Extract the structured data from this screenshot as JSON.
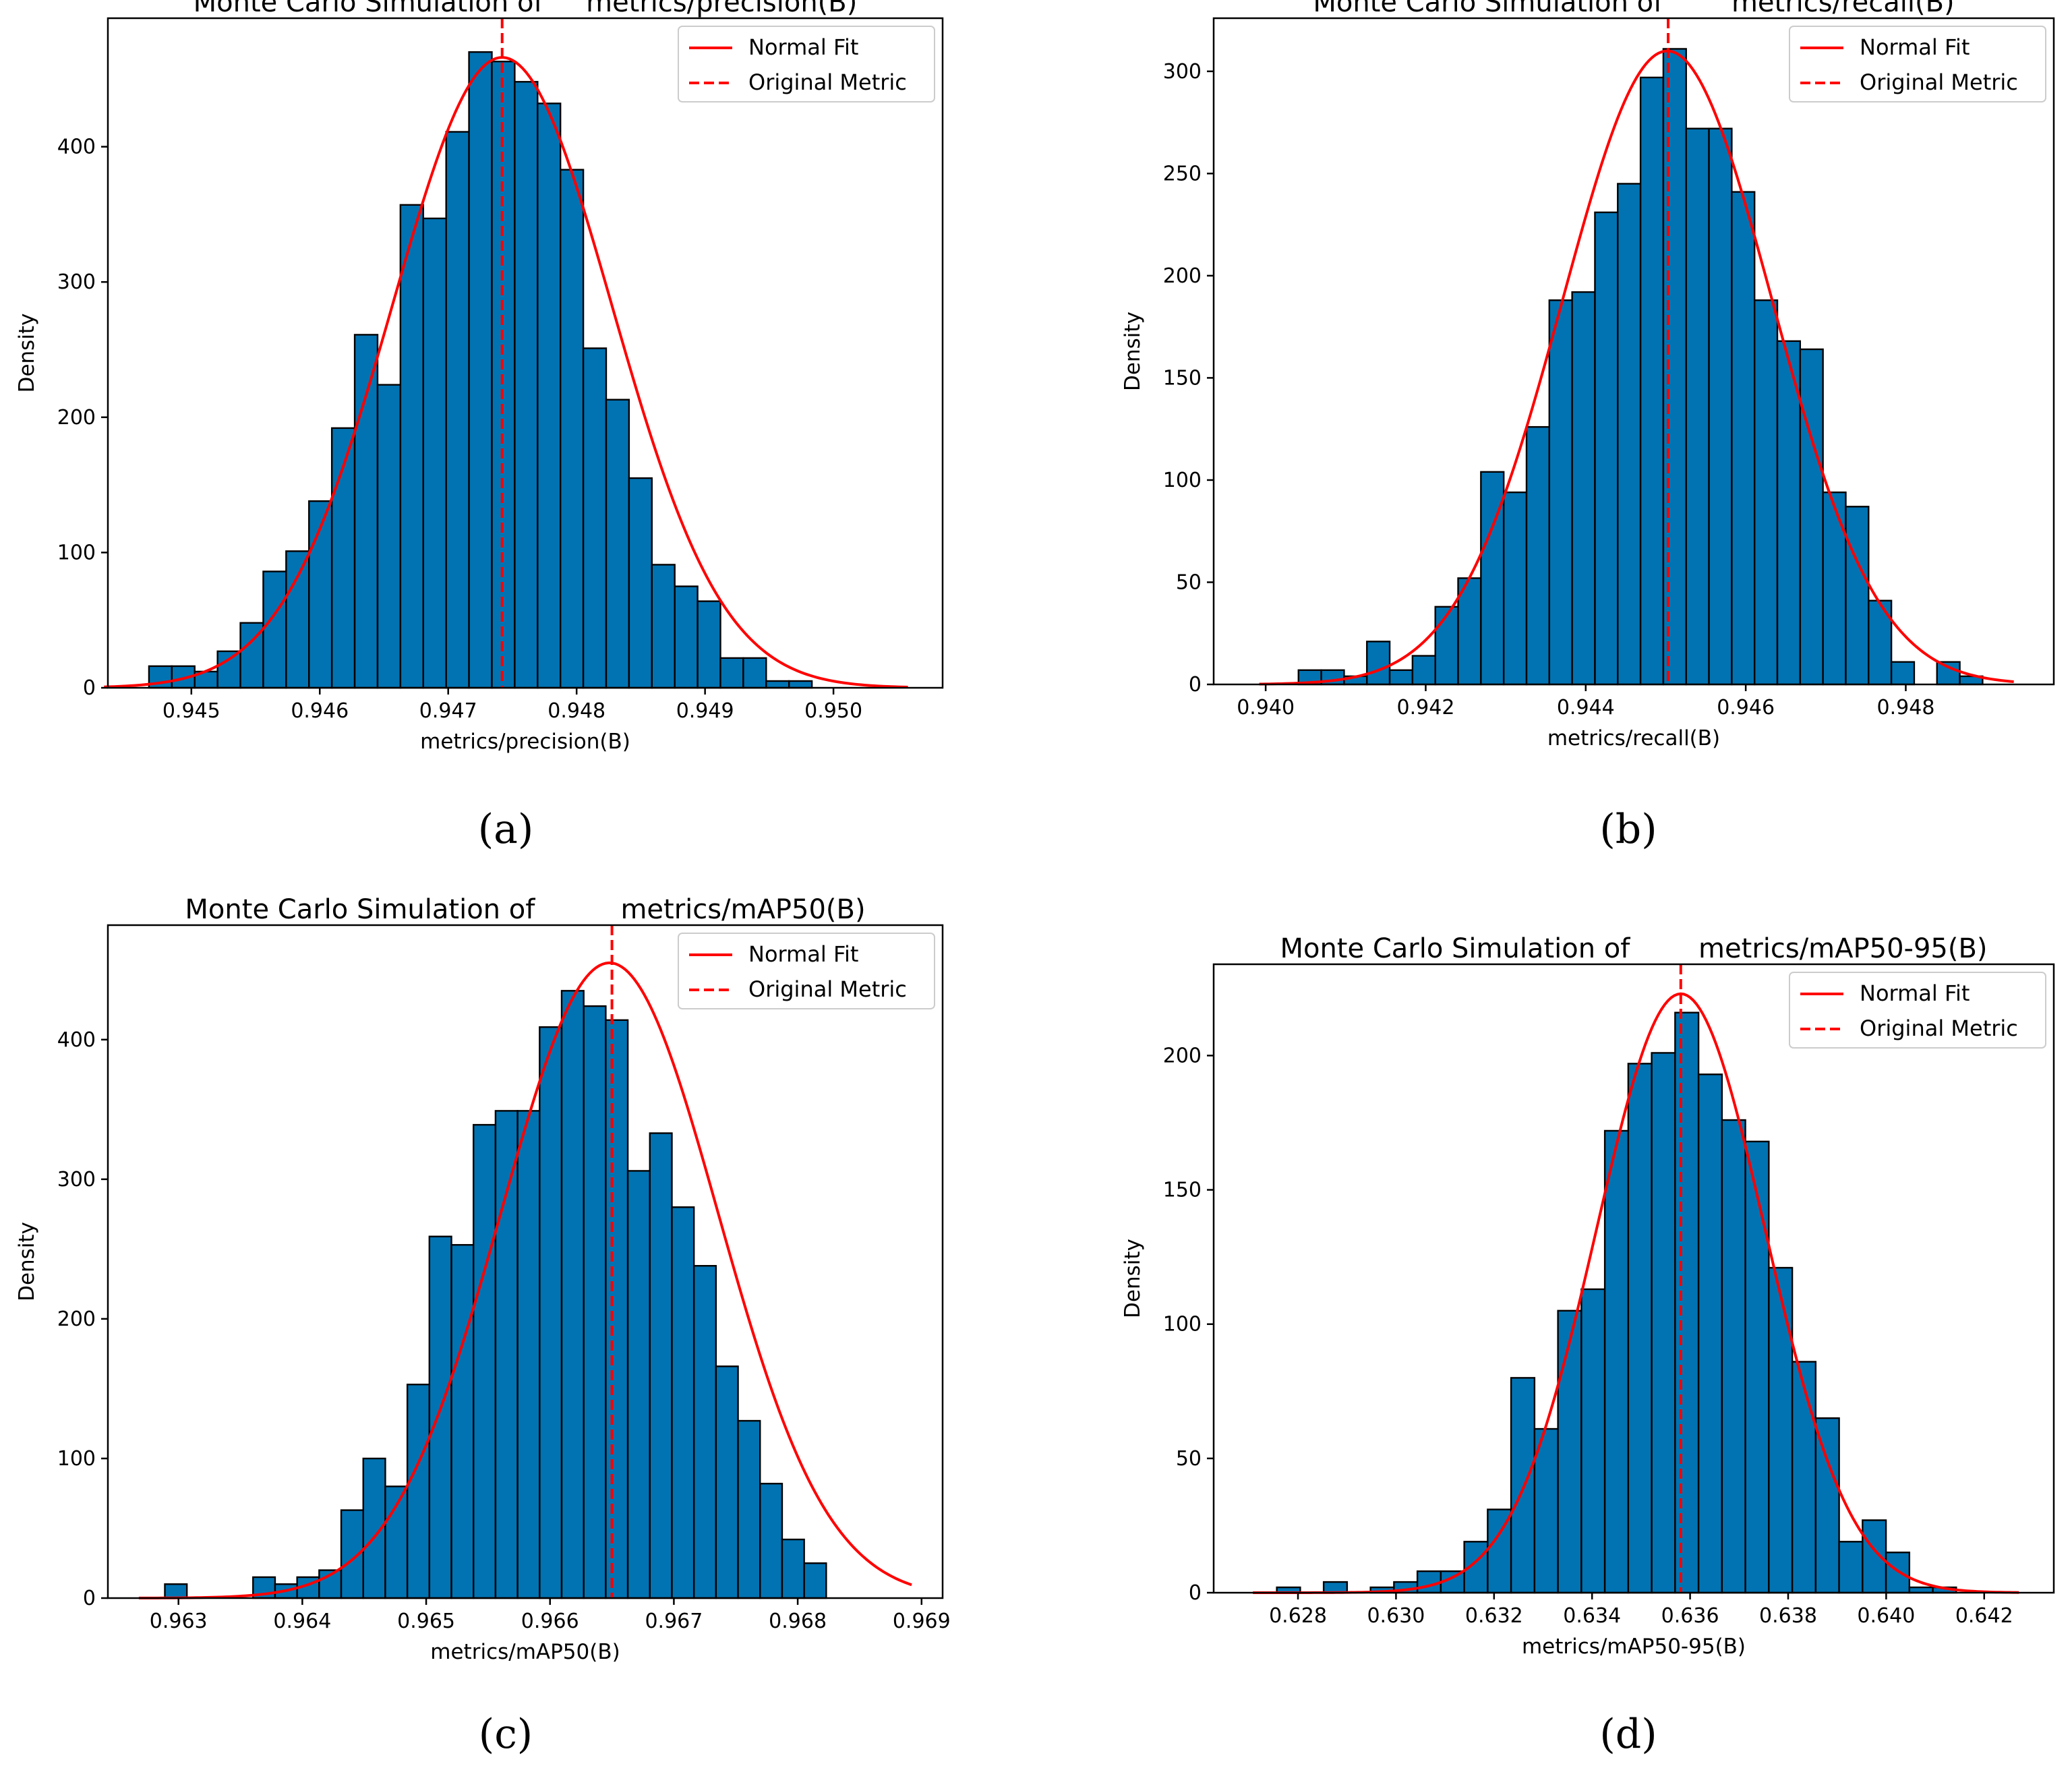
{
  "figure": {
    "colors": {
      "bar": "#0173b2",
      "barEdge": "#000000",
      "fit": "#ff0000",
      "background": "#ffffff"
    },
    "panels": [
      "(a)",
      "(b)",
      "(c)",
      "(d)"
    ]
  },
  "chart_data": [
    {
      "type": "bar",
      "title": "Monte Carlo Simulation of     metrics/precision(B)",
      "xlabel": "metrics/precision(B)",
      "ylabel": "Density",
      "caption": "(a)",
      "xlim": [
        0.94435,
        0.95085
      ],
      "ylim": [
        0,
        495
      ],
      "xticks": [
        0.945,
        0.946,
        0.947,
        0.948,
        0.949,
        0.95
      ],
      "xtickLabels": [
        "0.945",
        "0.946",
        "0.947",
        "0.948",
        "0.949",
        "0.950"
      ],
      "yticks": [
        0,
        100,
        200,
        300,
        400
      ],
      "yticksLabels": [
        "0",
        "100",
        "200",
        "300",
        "400"
      ],
      "bin_start": 0.94467,
      "bin_width": 0.000178,
      "values": [
        16,
        16,
        12,
        27,
        48,
        86,
        101,
        138,
        192,
        261,
        224,
        357,
        347,
        411,
        470,
        463,
        448,
        432,
        383,
        251,
        213,
        155,
        91,
        75,
        64,
        22,
        22,
        5,
        5
      ],
      "fit": {
        "mean": 0.94742,
        "sd": 0.000855,
        "peak": 466,
        "x_from": 0.94432,
        "x_to": 0.95058
      },
      "original_metric": 0.94742,
      "legend": {
        "position": "upper-right",
        "entries": [
          "Normal Fit",
          "Original Metric"
        ]
      }
    },
    {
      "type": "bar",
      "title": "Monte Carlo Simulation of        metrics/recall(B)",
      "xlabel": "metrics/recall(B)",
      "ylabel": "Density",
      "caption": "(b)",
      "xlim": [
        0.93935,
        0.94985
      ],
      "ylim": [
        0,
        326
      ],
      "xticks": [
        0.94,
        0.942,
        0.944,
        0.946,
        0.948
      ],
      "xtickLabels": [
        "0.940",
        "0.942",
        "0.944",
        "0.946",
        "0.948"
      ],
      "yticks": [
        0,
        50,
        100,
        150,
        200,
        250,
        300
      ],
      "yticksLabels": [
        "0",
        "50",
        "100",
        "150",
        "200",
        "250",
        "300"
      ],
      "bin_start": 0.94041,
      "bin_width": 0.000285,
      "values": [
        7,
        7,
        4,
        21,
        7,
        14,
        38,
        52,
        104,
        94,
        126,
        188,
        192,
        231,
        245,
        297,
        311,
        272,
        272,
        241,
        188,
        168,
        164,
        94,
        87,
        41,
        11,
        0,
        11,
        4
      ],
      "fit": {
        "mean": 0.94502,
        "sd": 0.00131,
        "peak": 310,
        "x_from": 0.93992,
        "x_to": 0.94935
      },
      "original_metric": 0.94503,
      "legend": {
        "position": "upper-right",
        "entries": [
          "Normal Fit",
          "Original Metric"
        ]
      }
    },
    {
      "type": "bar",
      "title": "Monte Carlo Simulation of          metrics/mAP50(B)",
      "xlabel": "metrics/mAP50(B)",
      "ylabel": "Density",
      "caption": "(c)",
      "xlim": [
        0.96243,
        0.96917
      ],
      "ylim": [
        0,
        482
      ],
      "xticks": [
        0.963,
        0.964,
        0.965,
        0.966,
        0.967,
        0.968,
        0.969
      ],
      "xtickLabels": [
        "0.963",
        "0.964",
        "0.965",
        "0.966",
        "0.967",
        "0.968",
        "0.969"
      ],
      "yticks": [
        0,
        100,
        200,
        300,
        400
      ],
      "yticksLabels": [
        "0",
        "100",
        "200",
        "300",
        "400"
      ],
      "bin_start": 0.96289,
      "bin_width": 0.000178,
      "values": [
        10,
        0,
        0,
        0,
        15,
        10,
        15,
        20,
        63,
        100,
        80,
        153,
        259,
        253,
        339,
        349,
        349,
        409,
        435,
        424,
        414,
        306,
        333,
        280,
        238,
        166,
        127,
        82,
        42,
        25
      ],
      "fit": {
        "mean": 0.96648,
        "sd": 0.000877,
        "peak": 455,
        "x_from": 0.96268,
        "x_to": 0.96892
      },
      "original_metric": 0.9665,
      "legend": {
        "position": "upper-right",
        "entries": [
          "Normal Fit",
          "Original Metric"
        ]
      }
    },
    {
      "type": "bar",
      "title": "Monte Carlo Simulation of        metrics/mAP50-95(B)",
      "xlabel": "metrics/mAP50-95(B)",
      "ylabel": "Density",
      "caption": "(d)",
      "xlim": [
        0.62628,
        0.64342
      ],
      "ylim": [
        0,
        234
      ],
      "xticks": [
        0.628,
        0.63,
        0.632,
        0.634,
        0.636,
        0.638,
        0.64,
        0.642
      ],
      "xtickLabels": [
        "0.628",
        "0.630",
        "0.632",
        "0.634",
        "0.636",
        "0.638",
        "0.640",
        "0.642"
      ],
      "yticks": [
        0,
        50,
        100,
        150,
        200
      ],
      "yticksLabels": [
        "0",
        "50",
        "100",
        "150",
        "200"
      ],
      "bin_start": 0.62709,
      "bin_width": 0.000478,
      "values": [
        0,
        2,
        0,
        4,
        0,
        2,
        4,
        8,
        8,
        19,
        31,
        80,
        61,
        105,
        113,
        172,
        197,
        201,
        216,
        193,
        176,
        168,
        121,
        86,
        65,
        19,
        27,
        15,
        2,
        2
      ],
      "fit": {
        "mean": 0.63581,
        "sd": 0.00172,
        "peak": 223,
        "x_from": 0.62708,
        "x_to": 0.64271
      },
      "original_metric": 0.63581,
      "legend": {
        "position": "upper-right",
        "entries": [
          "Normal Fit",
          "Original Metric"
        ]
      }
    }
  ]
}
